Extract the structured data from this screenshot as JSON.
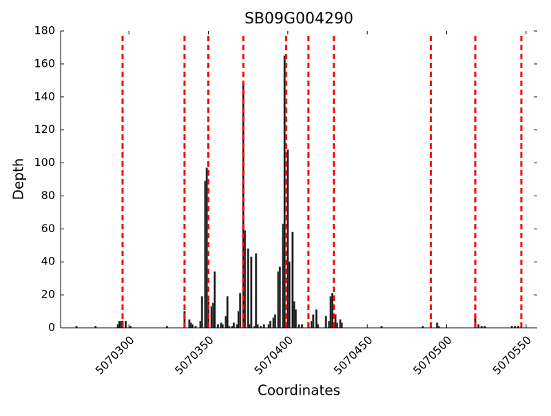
{
  "chart_data": {
    "type": "bar",
    "title": "SB09G004290",
    "xlabel": "Coordinates",
    "ylabel": "Depth",
    "x": [
      5070267,
      5070279,
      5070293,
      5070294,
      5070295,
      5070296,
      5070298,
      5070301,
      5070324,
      5070335,
      5070338,
      5070339,
      5070340,
      5070342,
      5070345,
      5070346,
      5070348,
      5070349,
      5070350,
      5070352,
      5070353,
      5070354,
      5070356,
      5070358,
      5070359,
      5070361,
      5070362,
      5070363,
      5070365,
      5070366,
      5070368,
      5070369,
      5070370,
      5070372,
      5070373,
      5070375,
      5070376,
      5070377,
      5070379,
      5070380,
      5070381,
      5070383,
      5070385,
      5070388,
      5070389,
      5070391,
      5070392,
      5070394,
      5070395,
      5070397,
      5070398,
      5070400,
      5070401,
      5070403,
      5070404,
      5070405,
      5070407,
      5070409,
      5070413,
      5070415,
      5070416,
      5070418,
      5070419,
      5070424,
      5070426,
      5070427,
      5070428,
      5070430,
      5070431,
      5070433,
      5070434,
      5070459,
      5070485,
      5070494,
      5070495,
      5070518,
      5070520,
      5070522,
      5070524,
      5070541,
      5070543,
      5070545
    ],
    "values": [
      1,
      1,
      2,
      4,
      4,
      4,
      4,
      1,
      1,
      10,
      5,
      3,
      2,
      1,
      4,
      19,
      89,
      97,
      16,
      13,
      15,
      34,
      2,
      3,
      2,
      7,
      19,
      1,
      1,
      3,
      2,
      10,
      21,
      148,
      59,
      48,
      2,
      43,
      1,
      45,
      2,
      1,
      2,
      2,
      4,
      6,
      8,
      34,
      37,
      63,
      165,
      108,
      40,
      58,
      16,
      11,
      2,
      2,
      3,
      4,
      8,
      11,
      2,
      7,
      4,
      19,
      21,
      8,
      3,
      5,
      3,
      1,
      1,
      3,
      1,
      7,
      2,
      1,
      1,
      1,
      1,
      1
    ],
    "color": "#111111",
    "vlines": [
      5070296,
      5070335,
      5070350,
      5070372,
      5070399,
      5070413,
      5070429,
      5070490,
      5070518,
      5070547
    ],
    "vline_color": "#ff0000",
    "xlim": [
      5070257,
      5070557
    ],
    "ylim": [
      0,
      180
    ],
    "xticks": [
      5070300,
      5070350,
      5070400,
      5070450,
      5070500,
      5070550
    ],
    "yticks": [
      0,
      20,
      40,
      60,
      80,
      100,
      120,
      140,
      160,
      180
    ],
    "grid": false
  }
}
